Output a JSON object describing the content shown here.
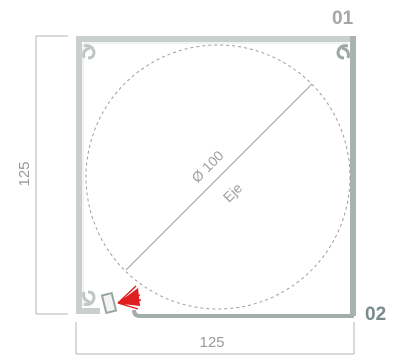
{
  "labels": {
    "part_01": "01",
    "part_02": "02"
  },
  "dimensions": {
    "height": "125",
    "width": "125",
    "diameter": "Ø 100",
    "axis": "Eje"
  },
  "colors": {
    "profile_light": "#c8cfcd",
    "profile_dark": "#a2aeab",
    "dimension_line": "#b5b5b5",
    "accent_red": "#e02020"
  }
}
